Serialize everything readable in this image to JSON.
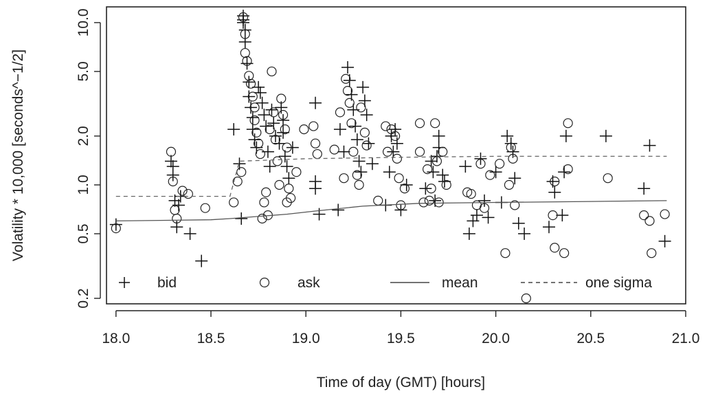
{
  "chart_data": {
    "type": "scatter",
    "title": "",
    "xlabel": "Time of day (GMT) [hours]",
    "ylabel": "Volatility * 10,000 [seconds^−1/2]",
    "xlim": [
      17.95,
      21.0
    ],
    "ylim": [
      0.185,
      12.5
    ],
    "y_scale": "log",
    "x_ticks": [
      18.0,
      18.5,
      19.0,
      19.5,
      20.0,
      20.5,
      21.0
    ],
    "x_tick_labels": [
      "18.0",
      "18.5",
      "19.0",
      "19.5",
      "20.0",
      "20.5",
      "21.0"
    ],
    "y_ticks": [
      0.2,
      0.5,
      1.0,
      2.0,
      5.0,
      10.0
    ],
    "y_tick_labels": [
      "0.2",
      "0.5",
      "1.0",
      "2.0",
      "5.0",
      "10.0"
    ],
    "grid": false,
    "legend_position": "bottom",
    "legend": [
      {
        "label": "bid",
        "marker": "+"
      },
      {
        "label": "ask",
        "marker": "o"
      },
      {
        "label": "mean",
        "line": "solid"
      },
      {
        "label": "one sigma",
        "line": "dashed"
      }
    ],
    "series": [
      {
        "name": "bid",
        "marker": "+",
        "points": [
          [
            18.0,
            0.57
          ],
          [
            18.29,
            1.4
          ],
          [
            18.3,
            1.3
          ],
          [
            18.3,
            1.15
          ],
          [
            18.31,
            0.8
          ],
          [
            18.32,
            0.55
          ],
          [
            18.33,
            0.75
          ],
          [
            18.34,
            0.85
          ],
          [
            18.39,
            0.5
          ],
          [
            18.45,
            0.34
          ],
          [
            18.62,
            2.2
          ],
          [
            18.65,
            1.35
          ],
          [
            18.66,
            0.62
          ],
          [
            18.67,
            11.0
          ],
          [
            18.67,
            10.4
          ],
          [
            18.67,
            10.0
          ],
          [
            18.68,
            9.0
          ],
          [
            18.68,
            7.6
          ],
          [
            18.69,
            5.6
          ],
          [
            18.7,
            4.3
          ],
          [
            18.7,
            3.5
          ],
          [
            18.71,
            3.0
          ],
          [
            18.72,
            2.6
          ],
          [
            18.72,
            2.2
          ],
          [
            18.73,
            1.9
          ],
          [
            18.74,
            1.7
          ],
          [
            18.75,
            4.0
          ],
          [
            18.76,
            3.7
          ],
          [
            18.77,
            3.2
          ],
          [
            18.78,
            2.7
          ],
          [
            18.79,
            2.3
          ],
          [
            18.8,
            1.6
          ],
          [
            18.81,
            1.3
          ],
          [
            18.82,
            2.9
          ],
          [
            18.83,
            2.4
          ],
          [
            18.84,
            2.0
          ],
          [
            18.86,
            1.8
          ],
          [
            18.87,
            3.0
          ],
          [
            18.88,
            2.5
          ],
          [
            18.88,
            2.1
          ],
          [
            18.89,
            1.5
          ],
          [
            18.9,
            1.3
          ],
          [
            18.91,
            1.1
          ],
          [
            18.93,
            1.7
          ],
          [
            19.05,
            3.2
          ],
          [
            19.05,
            1.05
          ],
          [
            19.05,
            0.95
          ],
          [
            19.07,
            0.66
          ],
          [
            19.17,
            0.7
          ],
          [
            19.18,
            2.2
          ],
          [
            19.2,
            1.6
          ],
          [
            19.22,
            5.3
          ],
          [
            19.23,
            4.4
          ],
          [
            19.24,
            3.6
          ],
          [
            19.25,
            2.9
          ],
          [
            19.26,
            2.3
          ],
          [
            19.27,
            1.9
          ],
          [
            19.28,
            1.4
          ],
          [
            19.29,
            1.2
          ],
          [
            19.3,
            4.0
          ],
          [
            19.31,
            3.3
          ],
          [
            19.32,
            2.7
          ],
          [
            19.33,
            1.8
          ],
          [
            19.35,
            1.35
          ],
          [
            19.42,
            0.75
          ],
          [
            19.44,
            1.2
          ],
          [
            19.45,
            2.0
          ],
          [
            19.46,
            1.6
          ],
          [
            19.47,
            2.2
          ],
          [
            19.48,
            1.8
          ],
          [
            19.5,
            0.7
          ],
          [
            19.53,
            1.0
          ],
          [
            19.63,
            0.95
          ],
          [
            19.66,
            1.4
          ],
          [
            19.67,
            1.2
          ],
          [
            19.68,
            0.8
          ],
          [
            19.69,
            1.5
          ],
          [
            19.7,
            2.0
          ],
          [
            19.7,
            1.7
          ],
          [
            19.72,
            1.15
          ],
          [
            19.73,
            1.05
          ],
          [
            19.84,
            1.3
          ],
          [
            19.86,
            0.5
          ],
          [
            19.88,
            0.6
          ],
          [
            19.9,
            0.65
          ],
          [
            19.92,
            1.45
          ],
          [
            19.94,
            0.8
          ],
          [
            19.96,
            0.63
          ],
          [
            20.0,
            1.2
          ],
          [
            20.03,
            0.78
          ],
          [
            20.06,
            2.0
          ],
          [
            20.08,
            1.8
          ],
          [
            20.09,
            1.6
          ],
          [
            20.1,
            1.1
          ],
          [
            20.12,
            0.58
          ],
          [
            20.15,
            0.5
          ],
          [
            20.28,
            0.55
          ],
          [
            20.3,
            1.05
          ],
          [
            20.31,
            0.9
          ],
          [
            20.35,
            0.65
          ],
          [
            20.36,
            1.2
          ],
          [
            20.37,
            2.0
          ],
          [
            20.58,
            2.0
          ],
          [
            20.78,
            0.95
          ],
          [
            20.81,
            1.75
          ],
          [
            20.89,
            0.45
          ]
        ]
      },
      {
        "name": "ask",
        "marker": "o",
        "points": [
          [
            18.0,
            0.54
          ],
          [
            18.29,
            1.6
          ],
          [
            18.3,
            1.05
          ],
          [
            18.31,
            0.7
          ],
          [
            18.32,
            0.62
          ],
          [
            18.35,
            0.92
          ],
          [
            18.38,
            0.88
          ],
          [
            18.47,
            0.72
          ],
          [
            18.62,
            0.78
          ],
          [
            18.64,
            1.05
          ],
          [
            18.66,
            1.2
          ],
          [
            18.67,
            10.8
          ],
          [
            18.68,
            8.5
          ],
          [
            18.68,
            6.5
          ],
          [
            18.69,
            5.8
          ],
          [
            18.7,
            4.7
          ],
          [
            18.71,
            4.2
          ],
          [
            18.72,
            3.5
          ],
          [
            18.73,
            3.0
          ],
          [
            18.73,
            2.5
          ],
          [
            18.74,
            2.1
          ],
          [
            18.75,
            1.8
          ],
          [
            18.76,
            1.55
          ],
          [
            18.77,
            0.62
          ],
          [
            18.78,
            0.78
          ],
          [
            18.79,
            0.9
          ],
          [
            18.8,
            0.65
          ],
          [
            18.81,
            2.2
          ],
          [
            18.82,
            5.0
          ],
          [
            18.83,
            2.8
          ],
          [
            18.84,
            1.9
          ],
          [
            18.85,
            1.4
          ],
          [
            18.86,
            1.0
          ],
          [
            18.87,
            3.4
          ],
          [
            18.88,
            2.7
          ],
          [
            18.89,
            2.2
          ],
          [
            18.9,
            1.7
          ],
          [
            18.9,
            0.78
          ],
          [
            18.91,
            0.95
          ],
          [
            18.92,
            0.83
          ],
          [
            18.95,
            1.2
          ],
          [
            18.99,
            2.2
          ],
          [
            19.04,
            2.3
          ],
          [
            19.05,
            1.8
          ],
          [
            19.06,
            1.55
          ],
          [
            19.15,
            1.65
          ],
          [
            19.18,
            2.8
          ],
          [
            19.2,
            1.1
          ],
          [
            19.21,
            4.5
          ],
          [
            19.22,
            3.8
          ],
          [
            19.23,
            3.2
          ],
          [
            19.24,
            2.4
          ],
          [
            19.25,
            1.6
          ],
          [
            19.27,
            1.15
          ],
          [
            19.28,
            1.0
          ],
          [
            19.29,
            3.0
          ],
          [
            19.31,
            2.1
          ],
          [
            19.32,
            1.75
          ],
          [
            19.38,
            0.8
          ],
          [
            19.42,
            2.3
          ],
          [
            19.43,
            1.6
          ],
          [
            19.45,
            2.2
          ],
          [
            19.47,
            2.0
          ],
          [
            19.48,
            1.45
          ],
          [
            19.49,
            1.1
          ],
          [
            19.5,
            0.75
          ],
          [
            19.52,
            0.95
          ],
          [
            19.6,
            2.4
          ],
          [
            19.6,
            1.6
          ],
          [
            19.62,
            0.78
          ],
          [
            19.64,
            1.25
          ],
          [
            19.65,
            0.8
          ],
          [
            19.66,
            0.95
          ],
          [
            19.68,
            2.4
          ],
          [
            19.69,
            1.4
          ],
          [
            19.7,
            0.78
          ],
          [
            19.72,
            1.6
          ],
          [
            19.74,
            1.0
          ],
          [
            19.85,
            0.9
          ],
          [
            19.87,
            0.88
          ],
          [
            19.9,
            0.75
          ],
          [
            19.92,
            1.35
          ],
          [
            19.94,
            0.72
          ],
          [
            19.97,
            1.15
          ],
          [
            20.02,
            1.35
          ],
          [
            20.05,
            0.38
          ],
          [
            20.07,
            1.0
          ],
          [
            20.08,
            1.7
          ],
          [
            20.09,
            1.45
          ],
          [
            20.1,
            0.75
          ],
          [
            20.16,
            0.2
          ],
          [
            20.3,
            0.65
          ],
          [
            20.31,
            1.05
          ],
          [
            20.31,
            0.41
          ],
          [
            20.36,
            0.38
          ],
          [
            20.38,
            1.25
          ],
          [
            20.38,
            2.4
          ],
          [
            20.59,
            1.1
          ],
          [
            20.78,
            0.65
          ],
          [
            20.81,
            0.6
          ],
          [
            20.82,
            0.38
          ],
          [
            20.89,
            0.66
          ]
        ]
      },
      {
        "name": "mean",
        "line": "solid",
        "points": [
          [
            18.0,
            0.6
          ],
          [
            18.5,
            0.61
          ],
          [
            18.6,
            0.62
          ],
          [
            18.9,
            0.66
          ],
          [
            19.05,
            0.69
          ],
          [
            19.3,
            0.74
          ],
          [
            19.6,
            0.77
          ],
          [
            20.0,
            0.78
          ],
          [
            20.5,
            0.79
          ],
          [
            20.9,
            0.8
          ]
        ]
      },
      {
        "name": "one sigma",
        "line": "dashed",
        "points": [
          [
            18.0,
            0.85
          ],
          [
            18.6,
            0.85
          ],
          [
            18.65,
            1.4
          ],
          [
            19.0,
            1.45
          ],
          [
            19.5,
            1.48
          ],
          [
            20.0,
            1.5
          ],
          [
            20.9,
            1.5
          ]
        ]
      }
    ]
  }
}
